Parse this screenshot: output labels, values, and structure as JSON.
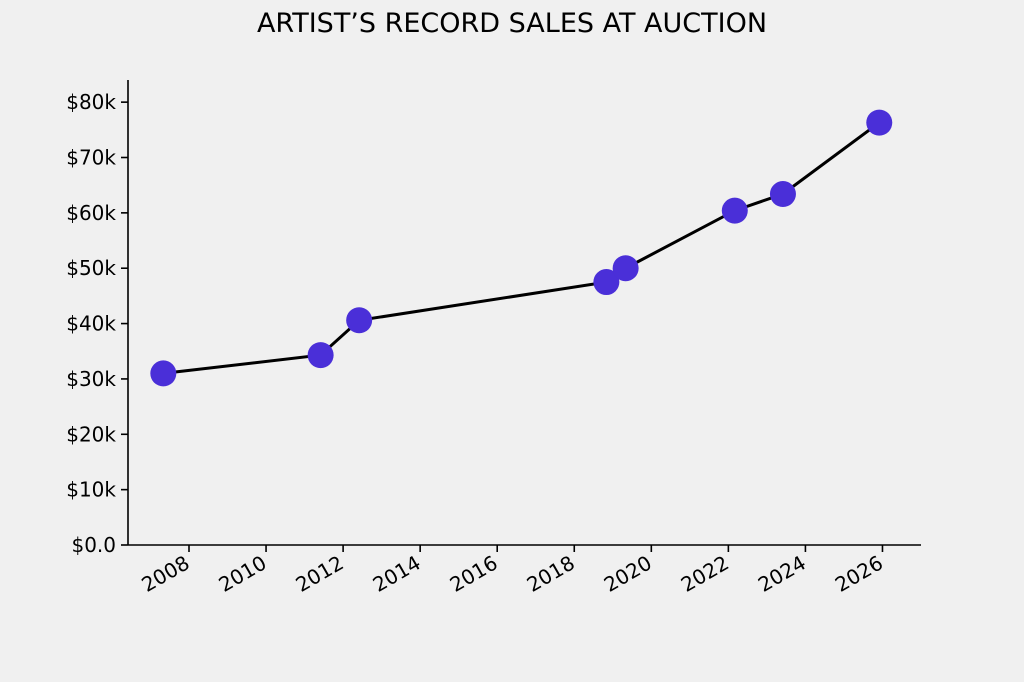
{
  "chart_data": {
    "type": "line",
    "title": "ARTIST’S RECORD SALES AT AUCTION",
    "xlabel": "",
    "ylabel": "",
    "x_ticks": [
      "2008",
      "2010",
      "2012",
      "2014",
      "2016",
      "2018",
      "2020",
      "2022",
      "2024",
      "2026"
    ],
    "y_ticks": [
      "$0.0",
      "$10k",
      "$20k",
      "$30k",
      "$40k",
      "$50k",
      "$60k",
      "$70k",
      "$80k"
    ],
    "xlim": [
      "2006-06",
      "2027-01"
    ],
    "ylim": [
      0,
      84000
    ],
    "grid": false,
    "legend": "none",
    "series": [
      {
        "points": [
          {
            "x": "2007-05",
            "y": 31000
          },
          {
            "x": "2011-06",
            "y": 34300
          },
          {
            "x": "2012-06",
            "y": 40600
          },
          {
            "x": "2018-11",
            "y": 47500
          },
          {
            "x": "2019-05",
            "y": 50000
          },
          {
            "x": "2022-03",
            "y": 60400
          },
          {
            "x": "2023-06",
            "y": 63400
          },
          {
            "x": "2025-12",
            "y": 76300
          }
        ]
      }
    ],
    "colors": {
      "marker": "#4a2fd8",
      "line": "#000000",
      "axis": "#000000",
      "background": "#f0f0f0"
    }
  }
}
